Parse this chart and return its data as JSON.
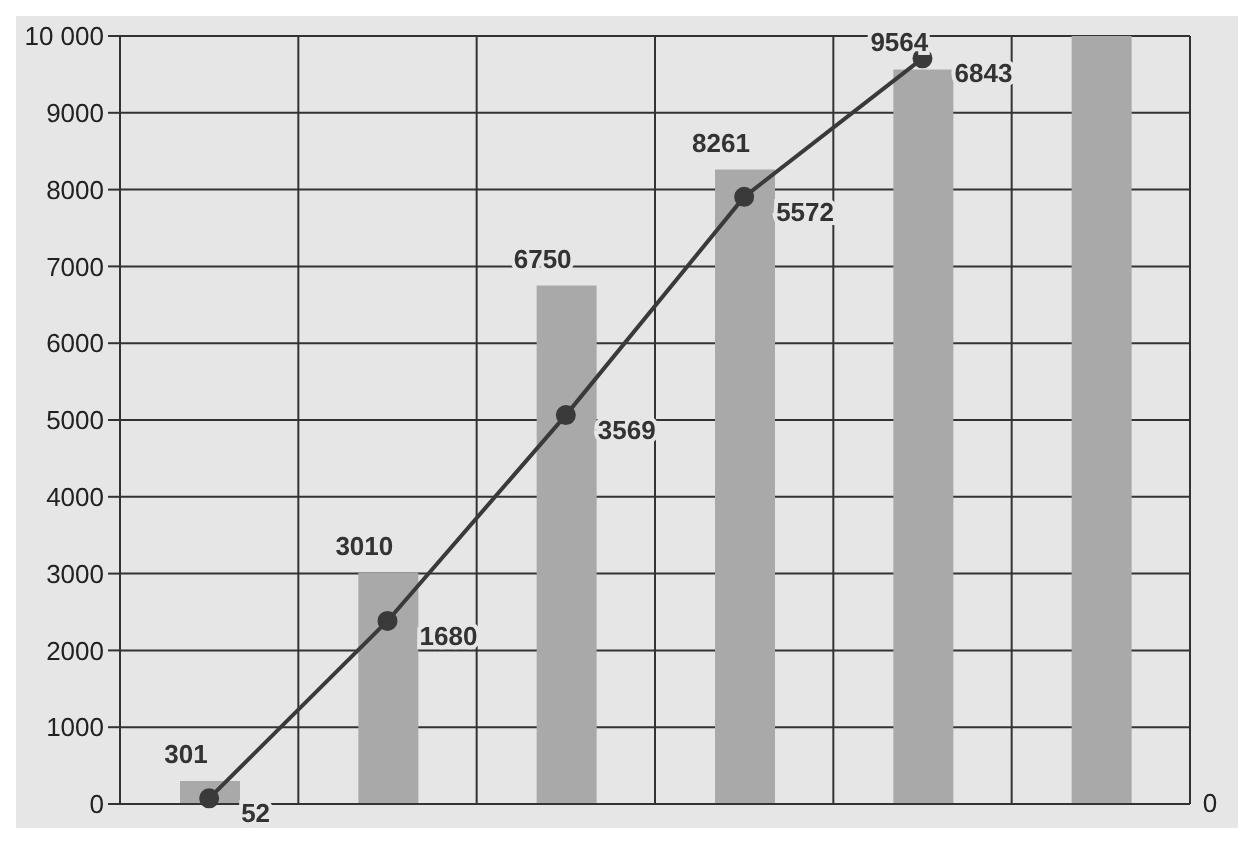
{
  "chart_data": {
    "type": "bar",
    "categories": [
      null,
      null,
      null,
      null,
      null,
      null
    ],
    "series": [
      {
        "color": "#a9a9a9",
        "values": [
          301,
          3010,
          6750,
          8261,
          9564,
          10000
        ],
        "value_labels": [
          "301",
          "3010",
          "6750",
          "8261",
          "9564",
          null
        ]
      },
      {
        "type": "line",
        "axis": "y2",
        "color": "#3a3a3a",
        "values": [
          52,
          1680,
          3569,
          5572,
          6843,
          null
        ],
        "value_labels": [
          "52",
          "1680",
          "3569",
          "5572",
          "6843",
          null
        ]
      }
    ],
    "ylim": [
      0,
      10000
    ],
    "yticks": [
      0,
      1000,
      2000,
      3000,
      4000,
      5000,
      6000,
      7000,
      8000,
      9000,
      {
        "value": 10000,
        "label": "10 000"
      }
    ],
    "annotations": [
      "0"
    ],
    "grid": true,
    "marker": "circle"
  }
}
